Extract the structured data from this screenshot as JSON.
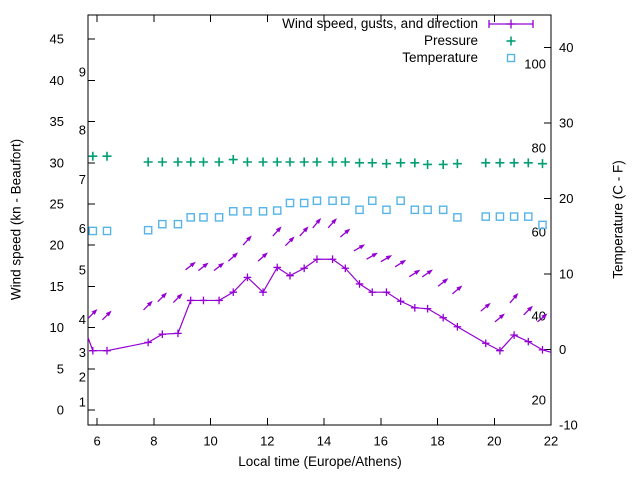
{
  "window": {
    "kind": "weather chart plot",
    "background": "#ffffff"
  },
  "legend": {
    "items": [
      {
        "id": "wind",
        "label": "Wind speed, gusts, and direction",
        "color": "#9400D3",
        "sample": "line-with-plus-and-end-bars"
      },
      {
        "id": "pressure",
        "label": "Pressure",
        "color": "#009E73",
        "sample": "plus-marker"
      },
      {
        "id": "temperature",
        "label": "Temperature",
        "color": "#56B4E9",
        "sample": "open-square-marker"
      }
    ]
  },
  "axes": {
    "x": {
      "label": "Local time (Europe/Athens)",
      "range": [
        5.68,
        22
      ],
      "ticks": [
        6,
        8,
        10,
        12,
        14,
        16,
        18,
        20,
        22
      ],
      "grid": false
    },
    "y_left": {
      "label": "Wind speed (kn - Beaufort)",
      "range": [
        -1.82,
        47.94
      ],
      "ticks": [
        0,
        5,
        10,
        15,
        20,
        25,
        30,
        35,
        40,
        45
      ],
      "beaufort_inner_labels": [
        {
          "beaufort": "1",
          "kn": 1
        },
        {
          "beaufort": "2",
          "kn": 4
        },
        {
          "beaufort": "3",
          "kn": 7
        },
        {
          "beaufort": "4",
          "kn": 11
        },
        {
          "beaufort": "5",
          "kn": 17
        },
        {
          "beaufort": "6",
          "kn": 22
        },
        {
          "beaufort": "7",
          "kn": 28
        },
        {
          "beaufort": "8",
          "kn": 34
        },
        {
          "beaufort": "9",
          "kn": 41
        }
      ]
    },
    "y_right": {
      "label": "Temperature (C - F)",
      "range": [
        -10,
        44.3
      ],
      "ticks": [
        -10,
        0,
        10,
        20,
        30,
        40
      ],
      "fahrenheit_inner_labels": [
        "20",
        "40",
        "60",
        "80",
        "100"
      ]
    }
  },
  "chart_data": {
    "type": "line",
    "title": "",
    "xlabel": "Local time (Europe/Athens)",
    "ylabel_left": "Wind speed (kn - Beaufort)",
    "ylabel_right": "Temperature (C - F)",
    "legend_position": "top-right-inside",
    "grid": false,
    "x_hours": [
      5.85,
      6.35,
      7.8,
      8.3,
      8.85,
      9.3,
      9.75,
      10.3,
      10.8,
      11.3,
      11.85,
      12.35,
      12.8,
      13.3,
      13.75,
      14.3,
      14.75,
      15.25,
      15.7,
      16.2,
      16.7,
      17.2,
      17.65,
      18.2,
      18.7,
      19.7,
      20.2,
      20.7,
      21.2,
      21.7
    ],
    "series": [
      {
        "name": "wind_speed_kn",
        "axis": "left",
        "color": "#9400D3",
        "marker": "plus",
        "line": true,
        "values": [
          7.2,
          7.2,
          8.2,
          9.2,
          9.3,
          13.3,
          13.3,
          13.3,
          14.3,
          16.1,
          14.3,
          17.3,
          16.3,
          17.2,
          18.3,
          18.3,
          17.2,
          15.3,
          14.3,
          14.3,
          13.2,
          12.4,
          12.3,
          11.2,
          10.1,
          8.1,
          7.2,
          9.1,
          8.3,
          7.3
        ],
        "edge_start": {
          "hour": 5.68,
          "kn": 8.8
        },
        "edge_end": {
          "hour": 22,
          "kn": 7.0
        }
      },
      {
        "name": "wind_gusts_kn_with_direction_arrows",
        "axis": "left",
        "color": "#9400D3",
        "marker": "arrow",
        "line": false,
        "values": [
          11.7,
          11.5,
          12.7,
          13.7,
          13.6,
          17.5,
          17.4,
          17.4,
          18.6,
          20.6,
          18.6,
          21.7,
          20.5,
          21.7,
          22.7,
          22.7,
          21.5,
          19.7,
          18.7,
          18.4,
          17.8,
          16.6,
          16.6,
          15.5,
          14.6,
          12.5,
          11.2,
          13.6,
          12.1,
          11.2
        ],
        "arrow_angle_deg_above_horizontal": [
          45,
          45,
          45,
          45,
          45,
          38,
          38,
          38,
          42,
          48,
          42,
          48,
          45,
          48,
          50,
          48,
          40,
          30,
          30,
          30,
          32,
          32,
          35,
          38,
          40,
          40,
          40,
          50,
          45,
          40
        ]
      },
      {
        "name": "pressure",
        "axis": "left-axis-units-no-visible-pressure-scale",
        "color": "#009E73",
        "marker": "plus",
        "line": false,
        "values": [
          30.8,
          30.8,
          30.1,
          30.1,
          30.1,
          30.1,
          30.1,
          30.1,
          30.4,
          30.1,
          30.1,
          30.1,
          30.1,
          30.1,
          30.1,
          30.1,
          30.1,
          30.0,
          30.0,
          29.9,
          30.0,
          30.0,
          29.8,
          29.8,
          29.9,
          30.0,
          30.0,
          30.0,
          30.0,
          29.9
        ]
      },
      {
        "name": "temperature_c",
        "axis": "right",
        "color": "#56B4E9",
        "marker": "open-square",
        "line": false,
        "values": [
          15.7,
          15.7,
          15.8,
          16.6,
          16.6,
          17.5,
          17.5,
          17.5,
          18.3,
          18.3,
          18.3,
          18.4,
          19.4,
          19.4,
          19.7,
          19.7,
          19.7,
          18.5,
          19.7,
          18.5,
          19.7,
          18.5,
          18.5,
          18.5,
          17.5,
          17.6,
          17.6,
          17.6,
          17.6,
          16.5
        ]
      }
    ]
  }
}
